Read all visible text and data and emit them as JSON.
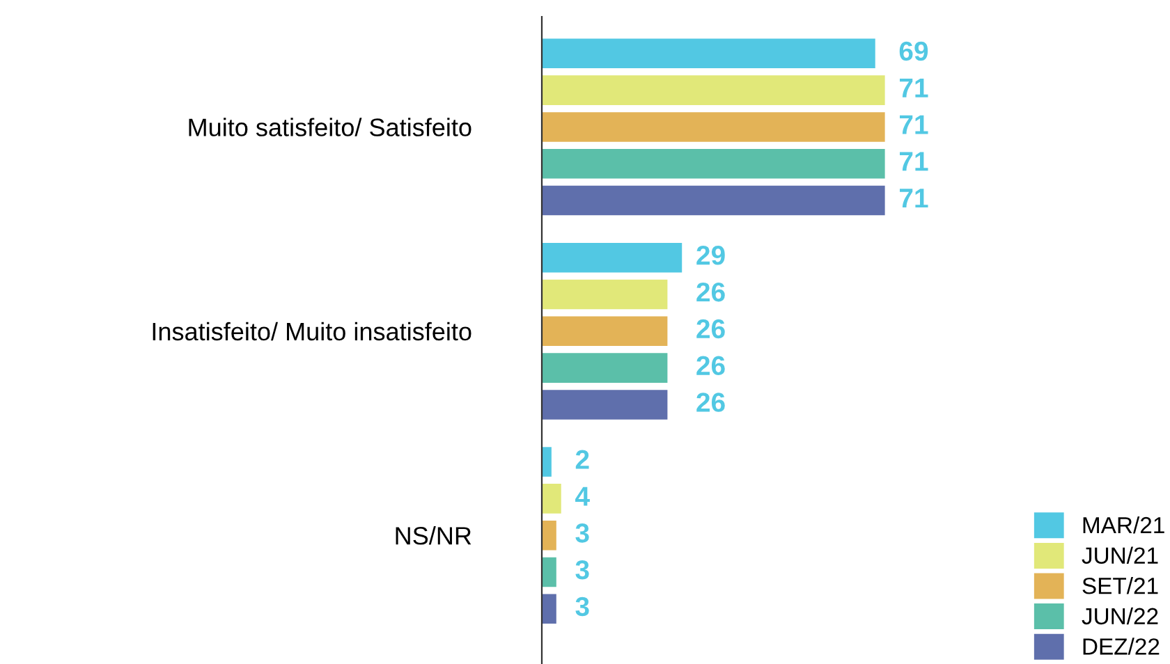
{
  "chart_data": {
    "type": "bar",
    "orientation": "horizontal",
    "categories": [
      "Muito satisfeito/ Satisfeito",
      "Insatisfeito/ Muito insatisfeito",
      "NS/NR"
    ],
    "series": [
      {
        "name": "MAR/21",
        "color": "#52c8e3",
        "values": [
          69,
          29,
          2
        ]
      },
      {
        "name": "JUN/21",
        "color": "#e1e879",
        "values": [
          71,
          26,
          4
        ]
      },
      {
        "name": "SET/21",
        "color": "#e3b357",
        "values": [
          71,
          26,
          3
        ]
      },
      {
        "name": "JUN/22",
        "color": "#5bbfa9",
        "values": [
          71,
          26,
          3
        ]
      },
      {
        "name": "DEZ/22",
        "color": "#5f6fac",
        "values": [
          71,
          26,
          3
        ]
      }
    ],
    "data_labels": true,
    "legend": "bottom right",
    "grid": false
  }
}
